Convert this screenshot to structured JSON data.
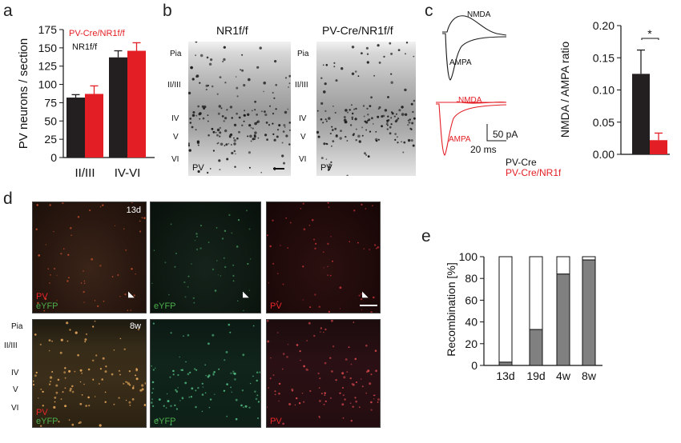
{
  "panels": {
    "a": "a",
    "b": "b",
    "c": "c",
    "d": "d",
    "e": "e"
  },
  "colors": {
    "ctrl": "#231f20",
    "ko": "#e31e24",
    "ko_text": "#e31e24",
    "grey": "#808080",
    "pv_text": "#e8262a",
    "eyfp_text": "#4cae4c"
  },
  "panel_a": {
    "chart_data": {
      "type": "bar",
      "categories": [
        "II/III",
        "IV-VI"
      ],
      "series": [
        {
          "name": "NR1f/f",
          "values": [
            82,
            137
          ],
          "err": [
            4,
            9
          ]
        },
        {
          "name": "PV-Cre/NR1f/f",
          "values": [
            87,
            146
          ],
          "err": [
            11,
            11
          ]
        }
      ],
      "ylabel": "PV neurons / section",
      "ylim": [
        0,
        175
      ],
      "yticks": [
        "0",
        "25",
        "50",
        "75",
        "100",
        "125",
        "150",
        "175"
      ],
      "legend": "top"
    }
  },
  "panel_b": {
    "titles": [
      "NR1f/f",
      "PV-Cre/NR1f/f"
    ],
    "layers": [
      "Pia",
      "II/III",
      "IV",
      "V",
      "VI"
    ],
    "stain": "PV"
  },
  "panel_c": {
    "trace_labels": {
      "nmda": "NMDA",
      "ampa": "AMPA",
      "nmda_ko": "NMDA",
      "ampa_ko": "AMPA"
    },
    "scale": {
      "y": "50 pA",
      "x": "20 ms"
    },
    "legend": [
      "PV-Cre",
      "PV-Cre/NR1f/f"
    ],
    "chart_data": {
      "type": "bar",
      "categories": [
        "PV-Cre",
        "PV-Cre/NR1f/f"
      ],
      "values": [
        0.125,
        0.022
      ],
      "err": [
        0.037,
        0.011
      ],
      "ylabel": "NMDA / AMPA ratio",
      "ylim": [
        0,
        0.2
      ],
      "yticks": [
        "0.00",
        "0.05",
        "0.10",
        "0.15",
        "0.20"
      ],
      "significance": "*"
    }
  },
  "panel_d": {
    "top": {
      "age": "13d",
      "labels": [
        "PV",
        "eYFP",
        "eYFP",
        "PV"
      ]
    },
    "bottom": {
      "age": "8w",
      "layers": [
        "Pia",
        "II/III",
        "IV",
        "V",
        "VI"
      ],
      "labels": [
        "PV",
        "eYFP",
        "eYFP",
        "PV"
      ]
    }
  },
  "panel_e": {
    "chart_data": {
      "type": "bar",
      "stacked": true,
      "categories": [
        "13d",
        "19d",
        "4w",
        "8w"
      ],
      "values": [
        3,
        33,
        84,
        97
      ],
      "ylabel": "Recombination [%]",
      "ylim": [
        0,
        100
      ],
      "yticks": [
        "0",
        "20",
        "40",
        "60",
        "80",
        "100"
      ]
    }
  }
}
